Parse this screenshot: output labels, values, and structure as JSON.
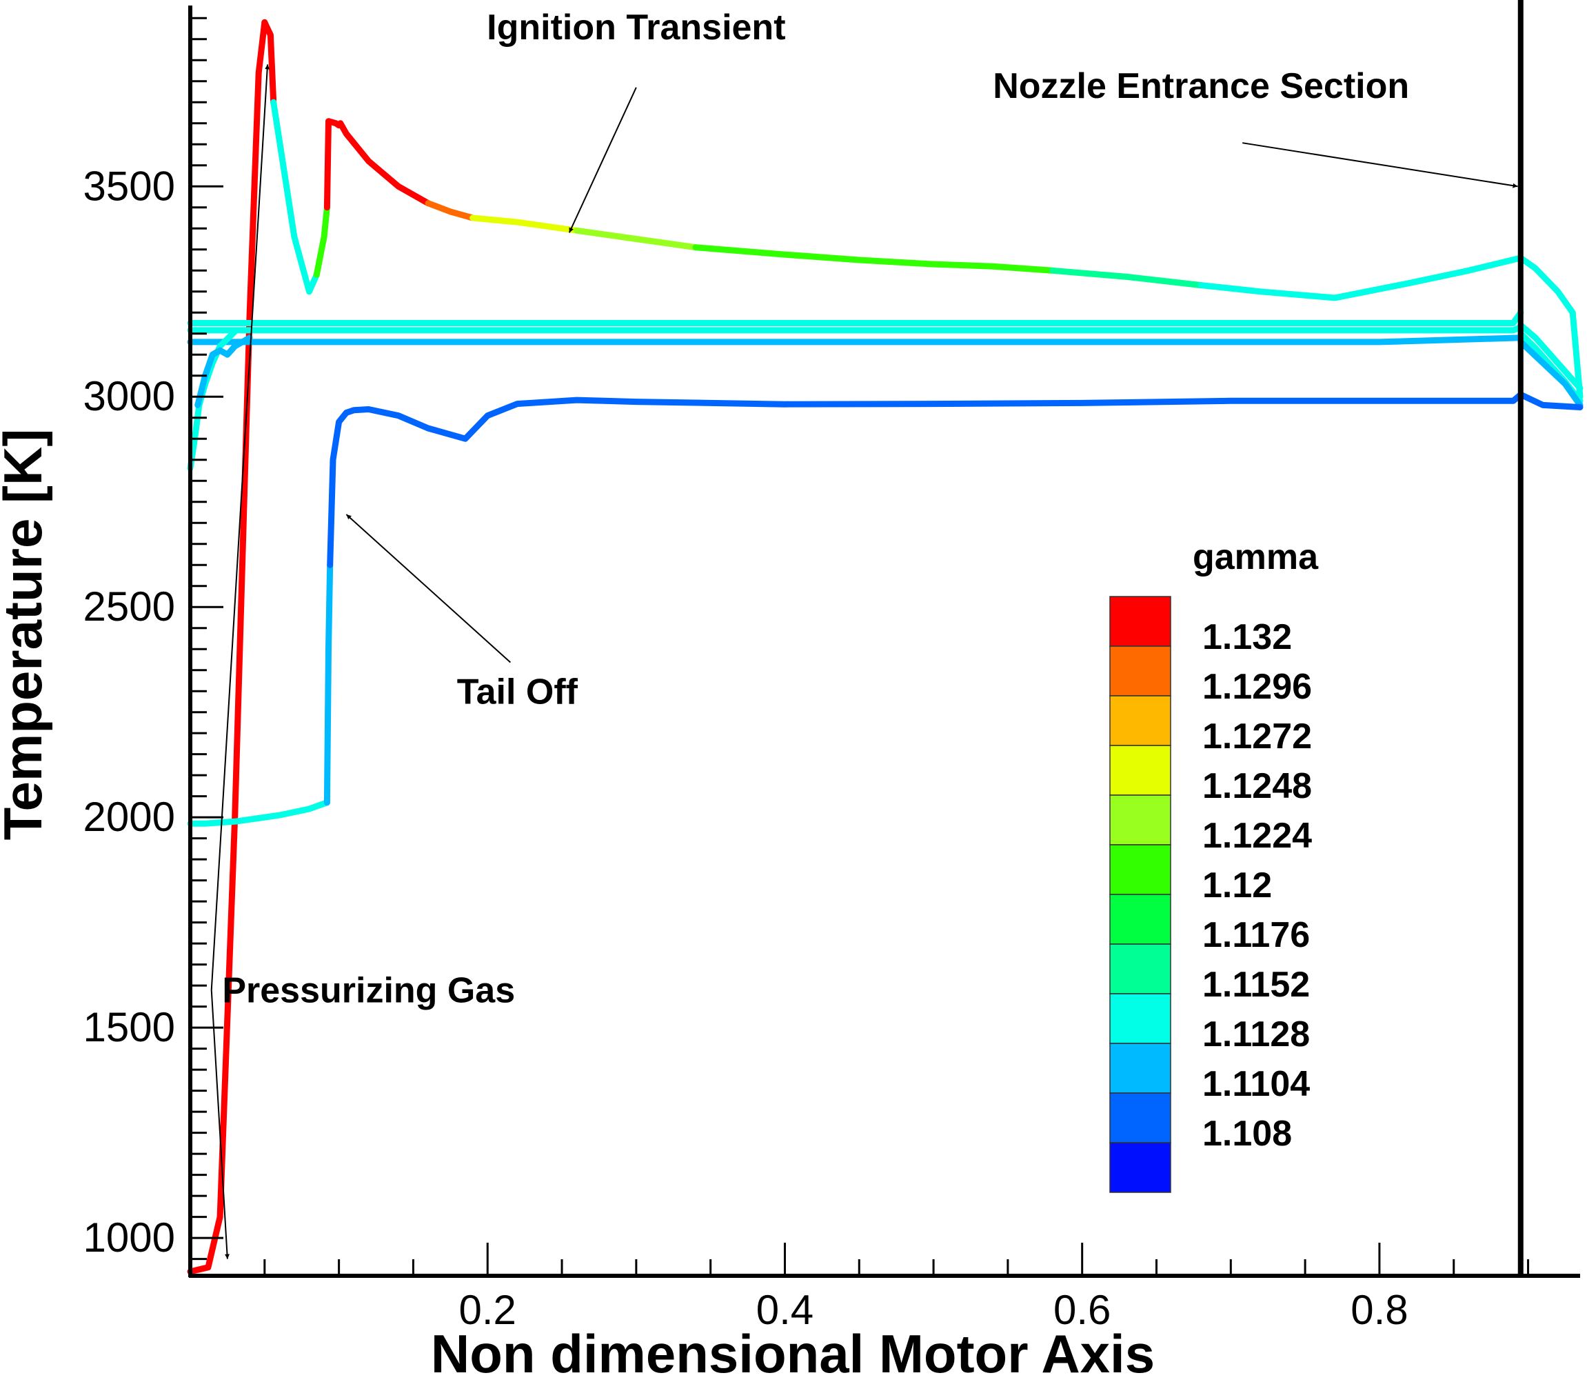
{
  "chart_data": {
    "type": "line",
    "xlabel": "Non dimensional Motor Axis",
    "ylabel": "Temperature [K]",
    "xlim": [
      0,
      0.935
    ],
    "ylim": [
      910,
      3930
    ],
    "x_ticks": [
      0.2,
      0.4,
      0.6,
      0.8
    ],
    "x_tick_labels": [
      "0.2",
      "0.4",
      "0.6",
      "0.8"
    ],
    "y_ticks": [
      1000,
      1500,
      2000,
      2500,
      3000,
      3500
    ],
    "y_tick_labels": [
      "1000",
      "1500",
      "2000",
      "2500",
      "3000",
      "3500"
    ],
    "grid": false,
    "legend": {
      "title": "gamma",
      "placement": "center-right",
      "levels": [
        {
          "label": "1.132",
          "color": "#ff0000"
        },
        {
          "label": "1.1296",
          "color": "#ff6a00"
        },
        {
          "label": "1.1272",
          "color": "#ffb800"
        },
        {
          "label": "1.1248",
          "color": "#e6ff00"
        },
        {
          "label": "1.1224",
          "color": "#98ff1e"
        },
        {
          "label": "1.12",
          "color": "#32ff00"
        },
        {
          "label": "1.1176",
          "color": "#00ff40"
        },
        {
          "label": "1.1152",
          "color": "#00ff94"
        },
        {
          "label": "1.1128",
          "color": "#00ffe6"
        },
        {
          "label": "1.1104",
          "color": "#00baff"
        },
        {
          "label": "1.108",
          "color": "#0064ff"
        },
        {
          "label": "",
          "color": "#0010ff"
        }
      ]
    },
    "vertical_line": {
      "x": 0.895,
      "label": "Nozzle Entrance Section"
    },
    "series": [
      {
        "color": "#ff0000",
        "x": [
          0.0,
          0.012,
          0.02,
          0.03,
          0.04,
          0.046,
          0.05
        ],
        "y": [
          920,
          930,
          1050,
          2000,
          3200,
          3770,
          3890
        ]
      },
      {
        "color": "#ff0000",
        "x": [
          0.05,
          0.054,
          0.056
        ],
        "y": [
          3890,
          3860,
          3700
        ]
      },
      {
        "color": "#00ffe6",
        "x": [
          0.056,
          0.07,
          0.08,
          0.085
        ],
        "y": [
          3700,
          3380,
          3250,
          3290
        ]
      },
      {
        "color": "#32ff00",
        "x": [
          0.085,
          0.09,
          0.092
        ],
        "y": [
          3290,
          3380,
          3450
        ]
      },
      {
        "color": "#ff0000",
        "x": [
          0.092,
          0.093,
          0.098,
          0.1,
          0.101,
          0.105,
          0.12,
          0.14,
          0.16
        ],
        "y": [
          3450,
          3655,
          3650,
          3645,
          3650,
          3625,
          3560,
          3500,
          3460
        ]
      },
      {
        "color": "#ff6a00",
        "x": [
          0.16,
          0.175,
          0.19
        ],
        "y": [
          3460,
          3440,
          3425
        ]
      },
      {
        "color": "#e6ff00",
        "x": [
          0.19,
          0.22,
          0.26
        ],
        "y": [
          3425,
          3415,
          3395
        ]
      },
      {
        "color": "#98ff1e",
        "x": [
          0.26,
          0.3,
          0.34
        ],
        "y": [
          3395,
          3375,
          3355
        ]
      },
      {
        "color": "#32ff00",
        "x": [
          0.34,
          0.4,
          0.45,
          0.5,
          0.54,
          0.58
        ],
        "y": [
          3355,
          3338,
          3325,
          3315,
          3310,
          3300
        ]
      },
      {
        "color": "#00ff94",
        "x": [
          0.58,
          0.63,
          0.68
        ],
        "y": [
          3300,
          3285,
          3265
        ]
      },
      {
        "color": "#00ffe6",
        "x": [
          0.68,
          0.72,
          0.77,
          0.82,
          0.86,
          0.895,
          0.905,
          0.92,
          0.93,
          0.935
        ],
        "y": [
          3265,
          3250,
          3235,
          3270,
          3300,
          3330,
          3305,
          3250,
          3200,
          3000
        ]
      },
      {
        "color": "#00ffe6",
        "x": [
          0.0,
          0.05,
          0.1,
          0.2,
          0.4,
          0.6,
          0.8,
          0.89,
          0.895
        ],
        "y": [
          3175,
          3175,
          3175,
          3175,
          3175,
          3175,
          3175,
          3175,
          3200
        ]
      },
      {
        "color": "#00ffe6",
        "x": [
          0.0,
          0.05,
          0.1,
          0.2,
          0.4,
          0.6,
          0.8,
          0.89,
          0.895
        ],
        "y": [
          3158,
          3158,
          3158,
          3158,
          3158,
          3158,
          3158,
          3158,
          3165
        ]
      },
      {
        "color": "#00baff",
        "x": [
          0.0,
          0.05,
          0.1,
          0.2,
          0.4,
          0.6,
          0.8,
          0.895
        ],
        "y": [
          3130,
          3130,
          3130,
          3130,
          3130,
          3130,
          3130,
          3140
        ]
      },
      {
        "color": "#00ffe6",
        "x": [
          0.895,
          0.905,
          0.915,
          0.925,
          0.935
        ],
        "y": [
          3170,
          3140,
          3100,
          3060,
          3020
        ]
      },
      {
        "color": "#00ffe6",
        "x": [
          0.895,
          0.905,
          0.915,
          0.925,
          0.935
        ],
        "y": [
          3150,
          3115,
          3075,
          3035,
          2990
        ]
      },
      {
        "color": "#00baff",
        "x": [
          0.895,
          0.91,
          0.925,
          0.935
        ],
        "y": [
          3130,
          3080,
          3030,
          2980
        ]
      },
      {
        "color": "#00ffe6",
        "x": [
          0.0,
          0.003,
          0.006,
          0.01,
          0.015,
          0.02,
          0.03
        ],
        "y": [
          2830,
          2900,
          2980,
          3030,
          3080,
          3120,
          3155
        ]
      },
      {
        "color": "#00baff",
        "x": [
          0.005,
          0.01,
          0.015,
          0.02,
          0.025,
          0.03,
          0.04
        ],
        "y": [
          2980,
          3050,
          3100,
          3110,
          3100,
          3120,
          3140
        ]
      },
      {
        "color": "#00ffe6",
        "x": [
          0.0,
          0.01,
          0.03,
          0.06,
          0.08,
          0.092
        ],
        "y": [
          1985,
          1985,
          1990,
          2005,
          2020,
          2035
        ]
      },
      {
        "color": "#00baff",
        "x": [
          0.092,
          0.093,
          0.094
        ],
        "y": [
          2035,
          2400,
          2600
        ]
      },
      {
        "color": "#0064ff",
        "x": [
          0.094,
          0.096,
          0.1,
          0.105,
          0.11,
          0.12,
          0.14,
          0.16,
          0.185,
          0.2,
          0.22,
          0.26,
          0.3,
          0.4,
          0.5,
          0.6,
          0.7,
          0.8,
          0.89,
          0.895,
          0.91,
          0.935
        ],
        "y": [
          2600,
          2850,
          2940,
          2962,
          2968,
          2970,
          2955,
          2925,
          2900,
          2955,
          2983,
          2992,
          2988,
          2982,
          2983,
          2985,
          2990,
          2990,
          2990,
          3005,
          2980,
          2975
        ]
      }
    ],
    "annotations": [
      {
        "text": "Ignition Transient",
        "x_text": 0.3,
        "y_text": 3850,
        "x_arrow": 0.255,
        "y_arrow": 3390
      },
      {
        "text": "Nozzle Entrance Section",
        "x_text": 0.68,
        "y_text": 3710,
        "x_arrow": 0.893,
        "y_arrow": 3500
      },
      {
        "text": "Tail Off",
        "x_text": 0.22,
        "y_text": 2270,
        "x_arrow": 0.105,
        "y_arrow": 2720
      },
      {
        "text": "Pressurizing Gas",
        "x_text": 0.12,
        "y_text": 1560,
        "x_arrow_1": 0.052,
        "y_arrow_1": 3790,
        "x_arrow_2": 0.025,
        "y_arrow_2": 950
      }
    ]
  }
}
